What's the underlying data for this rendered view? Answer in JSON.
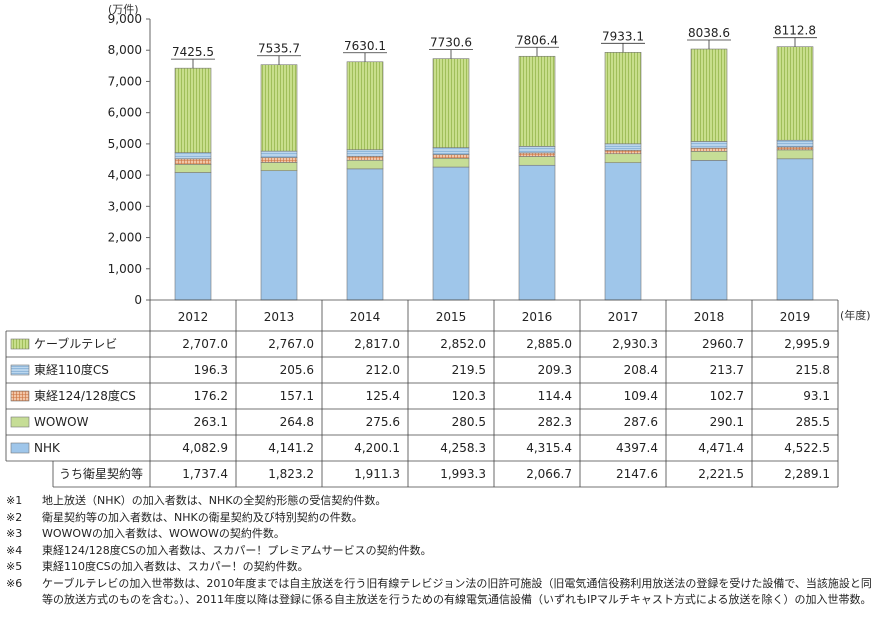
{
  "chart_data": {
    "type": "bar",
    "stacked": true,
    "y_unit": "(万件)",
    "x_unit": "(年度)",
    "categories": [
      "2012",
      "2013",
      "2014",
      "2015",
      "2016",
      "2017",
      "2018",
      "2019"
    ],
    "ylim": [
      0,
      9000
    ],
    "yticks": [
      "0",
      "1,000",
      "2,000",
      "3,000",
      "4,000",
      "5,000",
      "6,000",
      "7,000",
      "8,000",
      "9,000"
    ],
    "totals": [
      "7425.5",
      "7535.7",
      "7630.1",
      "7730.6",
      "7806.4",
      "7933.1",
      "8038.6",
      "8112.8"
    ],
    "series": [
      {
        "name": "ケーブルテレビ",
        "color": "#c8de8c",
        "pattern": "vlines",
        "values": [
          2707.0,
          2767.0,
          2817.0,
          2852.0,
          2885.0,
          2930.3,
          2960.7,
          2995.9
        ],
        "labels": [
          "2,707.0",
          "2,767.0",
          "2,817.0",
          "2,852.0",
          "2,885.0",
          "2,930.3",
          "2960.7",
          "2,995.9"
        ]
      },
      {
        "name": "東経110度CS",
        "color": "#bcd7ee",
        "pattern": "hlines",
        "values": [
          196.3,
          205.6,
          212.0,
          219.5,
          209.3,
          208.4,
          213.7,
          215.8
        ],
        "labels": [
          "196.3",
          "205.6",
          "212.0",
          "219.5",
          "209.3",
          "208.4",
          "213.7",
          "215.8"
        ]
      },
      {
        "name": "東経124/128度CS",
        "color": "#f2c6a8",
        "pattern": "grid",
        "values": [
          176.2,
          157.1,
          125.4,
          120.3,
          114.4,
          109.4,
          102.7,
          93.1
        ],
        "labels": [
          "176.2",
          "157.1",
          "125.4",
          "120.3",
          "114.4",
          "109.4",
          "102.7",
          "93.1"
        ]
      },
      {
        "name": "WOWOW",
        "color": "#c6dd96",
        "pattern": "solid",
        "values": [
          263.1,
          264.8,
          275.6,
          280.5,
          282.3,
          287.6,
          290.1,
          285.5
        ],
        "labels": [
          "263.1",
          "264.8",
          "275.6",
          "280.5",
          "282.3",
          "287.6",
          "290.1",
          "285.5"
        ]
      },
      {
        "name": "NHK",
        "color": "#9fc6ea",
        "pattern": "solid",
        "values": [
          4082.9,
          4141.2,
          4200.1,
          4258.3,
          4315.4,
          4397.4,
          4471.4,
          4522.5
        ],
        "labels": [
          "4,082.9",
          "4,141.2",
          "4,200.1",
          "4,258.3",
          "4,315.4",
          "4397.4",
          "4,471.4",
          "4,522.5"
        ]
      }
    ],
    "sub_row": {
      "name": "うち衛星契約等",
      "values": [
        1737.4,
        1823.2,
        1911.3,
        1993.3,
        2066.7,
        2147.6,
        2221.5,
        2289.1
      ],
      "labels": [
        "1,737.4",
        "1,823.2",
        "1,911.3",
        "1,993.3",
        "2,066.7",
        "2147.6",
        "2,221.5",
        "2,289.1"
      ]
    }
  },
  "notes": [
    {
      "mark": "※1",
      "text": "地上放送（NHK）の加入者数は、NHKの全契約形態の受信契約件数。"
    },
    {
      "mark": "※2",
      "text": "衛星契約等の加入者数は、NHKの衛星契約及び特別契約の件数。"
    },
    {
      "mark": "※3",
      "text": "WOWOWの加入者数は、WOWOWの契約件数。"
    },
    {
      "mark": "※4",
      "text": "東経124/128度CSの加入者数は、スカパー！プレミアムサービスの契約件数。"
    },
    {
      "mark": "※5",
      "text": "東経110度CSの加入者数は、スカパー！の契約件数。"
    },
    {
      "mark": "※6",
      "text": "ケーブルテレビの加入世帯数は、2010年度までは自主放送を行う旧有線テレビジョン法の旧許可施設（旧電気通信役務利用放送法の登録を受けた設備で、当該施設と同等の放送方式のものを含む。）、2011年度以降は登録に係る自主放送を行うための有線電気通信設備（いずれもIPマルチキャスト方式による放送を除く）の加入世帯数。"
    }
  ]
}
